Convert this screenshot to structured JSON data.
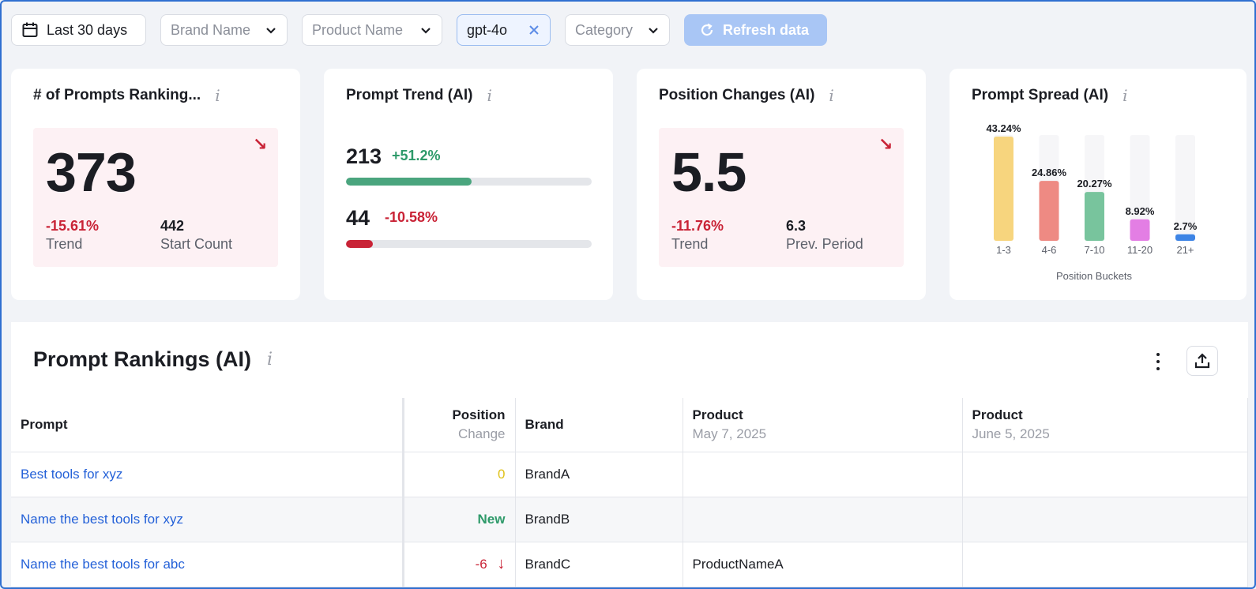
{
  "filters": {
    "date_range": "Last 30 days",
    "brand": "Brand Name",
    "product": "Product Name",
    "model_chip": "gpt-4o",
    "category": "Category",
    "refresh": "Refresh data"
  },
  "cards": {
    "prompts_ranking": {
      "title": "# of Prompts Ranking...",
      "value": "373",
      "trend_value": "-15.61%",
      "trend_label": "Trend",
      "start_value": "442",
      "start_label": "Start Count"
    },
    "prompt_trend": {
      "title": "Prompt Trend (AI)",
      "up_count": "213",
      "up_change": "+51.2%",
      "up_fraction": 0.51,
      "down_count": "44",
      "down_change": "-10.58%",
      "down_fraction": 0.11
    },
    "position_changes": {
      "title": "Position Changes (AI)",
      "value": "5.5",
      "trend_value": "-11.76%",
      "trend_label": "Trend",
      "prev_value": "6.3",
      "prev_label": "Prev. Period"
    },
    "prompt_spread": {
      "title": "Prompt Spread (AI)",
      "axis_label": "Position Buckets"
    }
  },
  "chart_data": {
    "type": "bar",
    "title": "Prompt Spread (AI)",
    "xlabel": "Position Buckets",
    "ylabel": "",
    "categories": [
      "1-3",
      "4-6",
      "7-10",
      "11-20",
      "21+"
    ],
    "values": [
      43.24,
      24.86,
      20.27,
      8.92,
      2.7
    ],
    "value_labels": [
      "43.24%",
      "24.86%",
      "20.27%",
      "8.92%",
      "2.7%"
    ],
    "colors": [
      "#f7d57e",
      "#ee8a83",
      "#78c49d",
      "#e37ee4",
      "#3d84e5"
    ],
    "ylim": [
      0,
      43.24
    ]
  },
  "table": {
    "title": "Prompt Rankings (AI)",
    "headers": {
      "prompt": "Prompt",
      "position": "Position",
      "position_sub": "Change",
      "brand": "Brand",
      "product1": "Product",
      "product1_sub": "May 7, 2025",
      "product2": "Product",
      "product2_sub": "June 5, 2025"
    },
    "rows": [
      {
        "prompt": "Best tools for xyz",
        "change": "0",
        "brand": "BrandA",
        "product1": "",
        "product2": ""
      },
      {
        "prompt": "Name the best tools for xyz",
        "change": "New",
        "brand": "BrandB",
        "product1": "",
        "product2": ""
      },
      {
        "prompt": "Name the best tools for abc",
        "change": "-6",
        "brand": "BrandC",
        "product1": "ProductNameA",
        "product2": ""
      }
    ]
  },
  "colors": {
    "accent": "#2461d8",
    "negative": "#c92336",
    "positive": "#2e9a6a",
    "neutral_change": "#e0c21a"
  }
}
